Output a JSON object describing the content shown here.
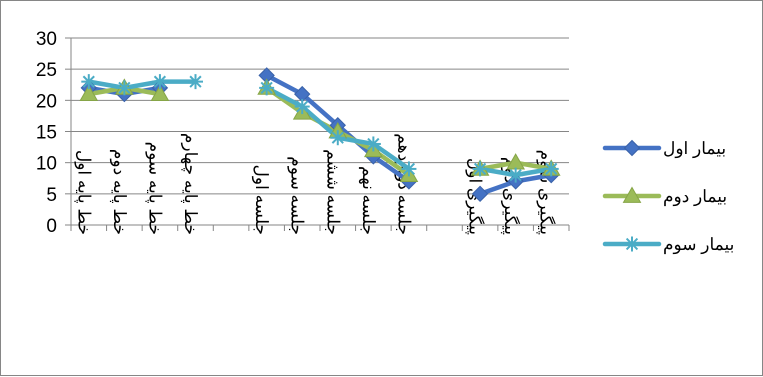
{
  "chart_data": {
    "type": "line",
    "categories": [
      "خط پایه اول",
      "خط پایه دوم",
      "خط پایه سوم",
      "خط پایه چهارم",
      "",
      "جلسه اول",
      "جلسه سوم",
      "جلسه ششم",
      "جلسه نهم",
      "جلسه دوازدهم",
      "",
      "پیگیری اول",
      "پیگیری دوم",
      "پیگیری سوم"
    ],
    "series": [
      {
        "name": "بیمار اول",
        "color": "#4472C4",
        "marker": "diamond",
        "values": [
          22,
          21,
          22,
          null,
          null,
          24,
          21,
          16,
          11,
          7,
          null,
          5,
          7,
          8
        ]
      },
      {
        "name": "بیمار دوم",
        "color": "#9BBB59",
        "marker": "triangle",
        "values": [
          21,
          22,
          21,
          null,
          null,
          22,
          18,
          15,
          12,
          8,
          null,
          9,
          10,
          9
        ]
      },
      {
        "name": "بیمار سوم",
        "color": "#4BACC6",
        "marker": "star",
        "values": [
          23,
          22,
          23,
          23,
          null,
          22,
          19,
          14,
          13,
          9,
          null,
          9,
          8,
          9
        ]
      }
    ],
    "ylim": [
      0,
      30
    ],
    "yticks": [
      0,
      5,
      10,
      15,
      20,
      25,
      30
    ],
    "grid": true,
    "legend_position": "right"
  }
}
